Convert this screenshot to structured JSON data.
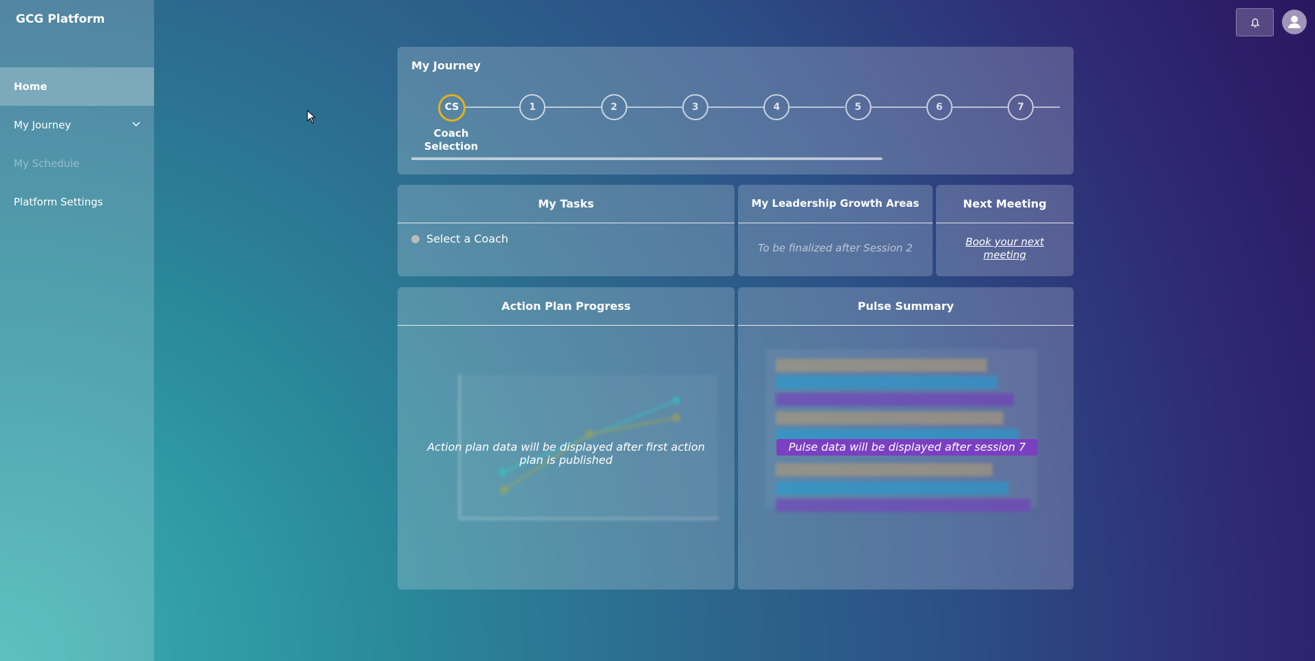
{
  "sidebar": {
    "brand": "GCG Platform",
    "nav": [
      "Home",
      "My Journey",
      "My Schedule",
      "Platform Settings"
    ]
  },
  "journey": {
    "title": "My Journey",
    "steps": [
      "CS",
      "1",
      "2",
      "3",
      "4",
      "5",
      "6",
      "7"
    ],
    "current_label": "Coach Selection"
  },
  "tasks": {
    "title": "My Tasks",
    "items": [
      "Select a Coach"
    ]
  },
  "growth": {
    "title": "My Leadership Growth Areas",
    "note": "To be finalized after Session 2"
  },
  "meeting": {
    "title": "Next Meeting",
    "link": "Book your next meeting"
  },
  "action_plan": {
    "title": "Action Plan Progress",
    "message": "Action plan data will be displayed after first action plan is published"
  },
  "pulse": {
    "title": "Pulse Summary",
    "message": "Pulse data will be displayed after session 7"
  }
}
